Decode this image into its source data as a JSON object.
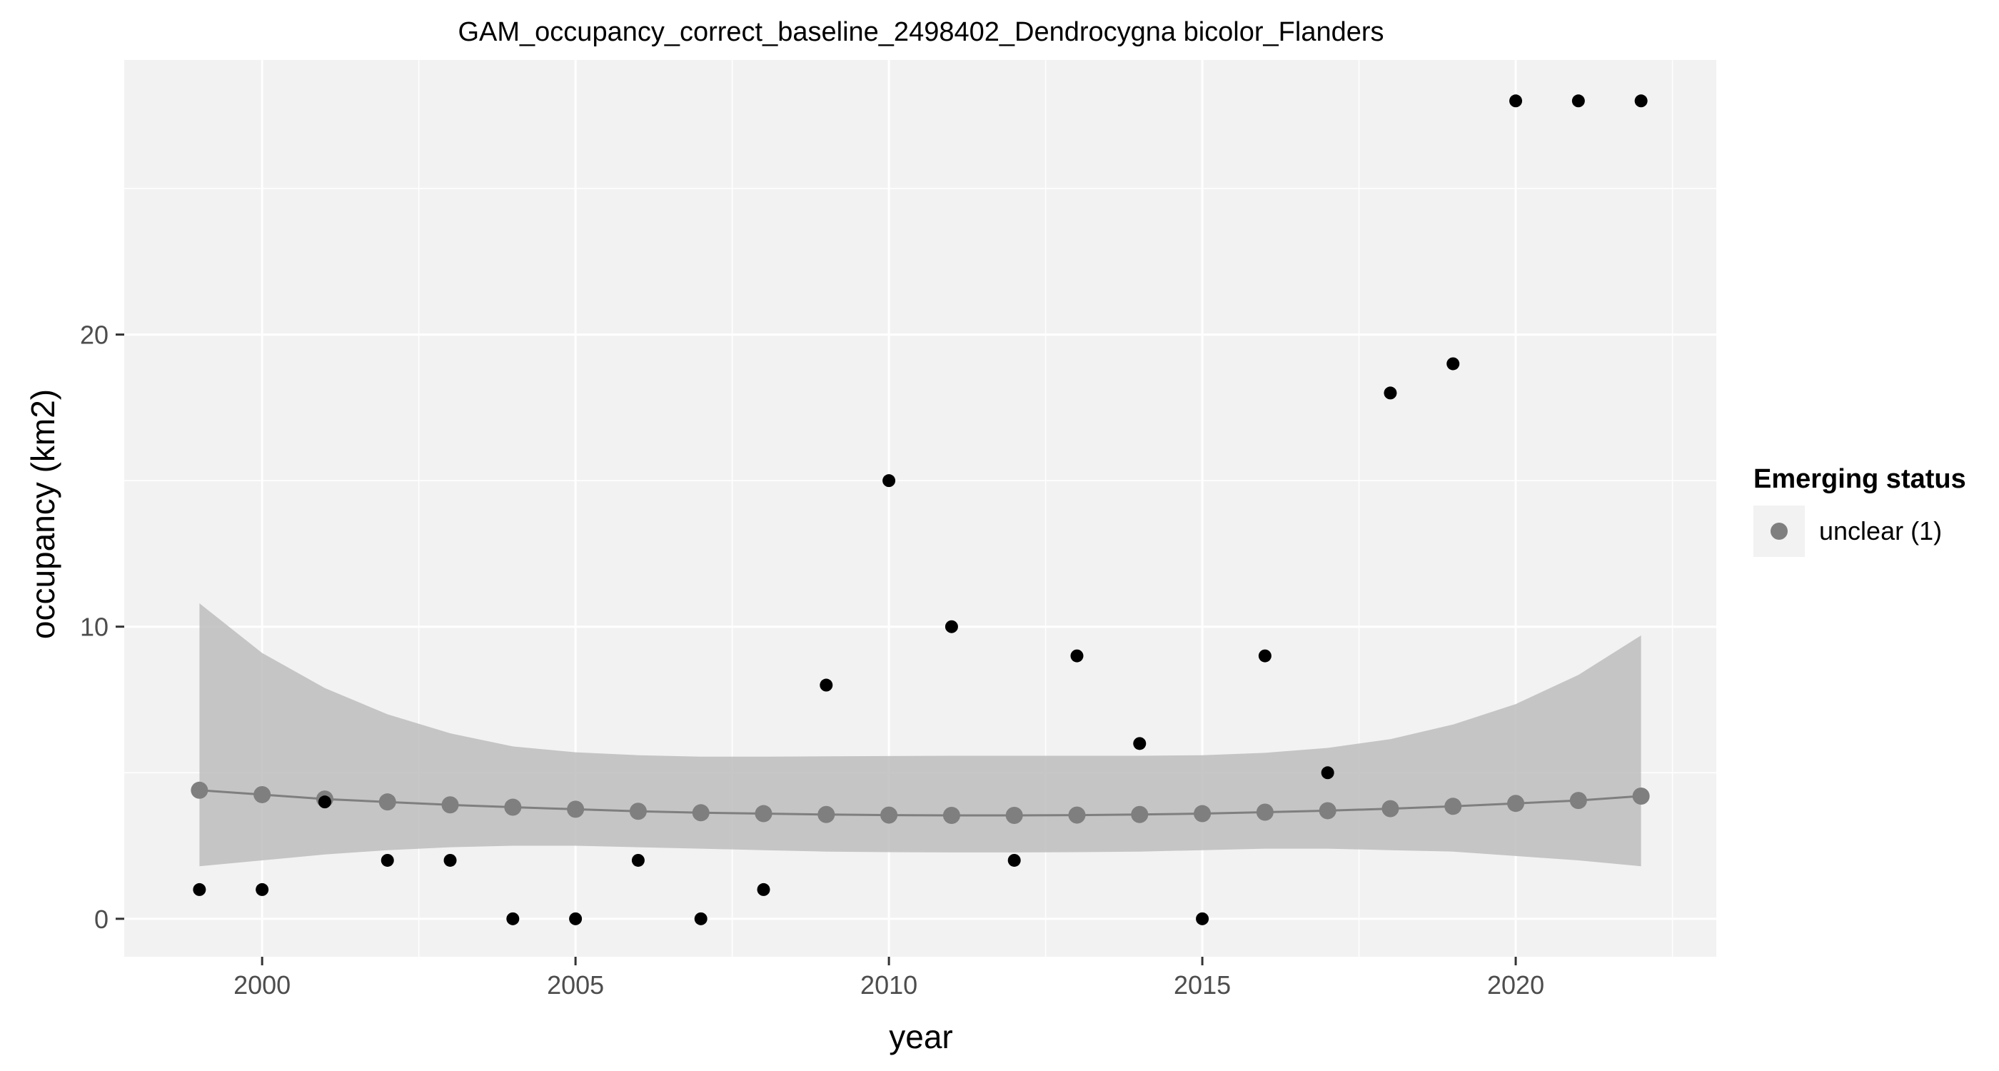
{
  "chart_data": {
    "type": "scatter",
    "title": "GAM_occupancy_correct_baseline_2498402_Dendrocygna bicolor_Flanders",
    "xlabel": "year",
    "ylabel": "occupancy (km2)",
    "xlim": [
      1997.8,
      2023.2
    ],
    "ylim": [
      -1.3,
      29.4
    ],
    "x_ticks": [
      2000,
      2005,
      2010,
      2015,
      2020
    ],
    "y_ticks": [
      0,
      10,
      20
    ],
    "x_minor_ticks": [
      1997.5,
      2002.5,
      2007.5,
      2012.5,
      2017.5,
      2022.5
    ],
    "y_minor_ticks": [
      5,
      15,
      25
    ],
    "grid": true,
    "legend": {
      "title": "Emerging status",
      "position": "right",
      "entries": [
        {
          "label": "unclear (1)",
          "color": "#7f7f7f"
        }
      ]
    },
    "colors": {
      "panel_background": "#f2f2f2",
      "grid": "#ffffff",
      "observed_points": "#000000",
      "fit": "#7f7f7f",
      "ribbon": "#bdbdbd"
    },
    "series": [
      {
        "role": "observed",
        "x": [
          1999,
          2000,
          2001,
          2002,
          2003,
          2004,
          2005,
          2006,
          2007,
          2008,
          2009,
          2010,
          2011,
          2012,
          2013,
          2014,
          2015,
          2016,
          2017,
          2018,
          2019,
          2020,
          2021,
          2022
        ],
        "y": [
          1,
          1,
          4,
          2,
          2,
          0,
          0,
          2,
          0,
          1,
          8,
          15,
          10,
          2,
          9,
          6,
          0,
          9,
          5,
          18,
          19,
          28,
          28,
          28
        ]
      },
      {
        "role": "fit",
        "name": "unclear (1)",
        "x": [
          1999,
          2000,
          2001,
          2002,
          2003,
          2004,
          2005,
          2006,
          2007,
          2008,
          2009,
          2010,
          2011,
          2012,
          2013,
          2014,
          2015,
          2016,
          2017,
          2018,
          2019,
          2020,
          2021,
          2022
        ],
        "y": [
          4.4,
          4.25,
          4.1,
          4.0,
          3.9,
          3.82,
          3.75,
          3.68,
          3.63,
          3.6,
          3.57,
          3.55,
          3.54,
          3.54,
          3.55,
          3.57,
          3.6,
          3.65,
          3.7,
          3.77,
          3.85,
          3.95,
          4.05,
          4.2
        ],
        "lower": [
          1.8,
          2.0,
          2.2,
          2.35,
          2.45,
          2.5,
          2.5,
          2.45,
          2.4,
          2.35,
          2.3,
          2.28,
          2.27,
          2.27,
          2.28,
          2.3,
          2.35,
          2.4,
          2.4,
          2.35,
          2.3,
          2.15,
          2.0,
          1.8
        ],
        "upper": [
          10.8,
          9.1,
          7.9,
          7.0,
          6.35,
          5.9,
          5.7,
          5.6,
          5.55,
          5.55,
          5.56,
          5.57,
          5.58,
          5.58,
          5.58,
          5.58,
          5.6,
          5.68,
          5.85,
          6.15,
          6.65,
          7.35,
          8.35,
          9.7
        ]
      }
    ]
  }
}
